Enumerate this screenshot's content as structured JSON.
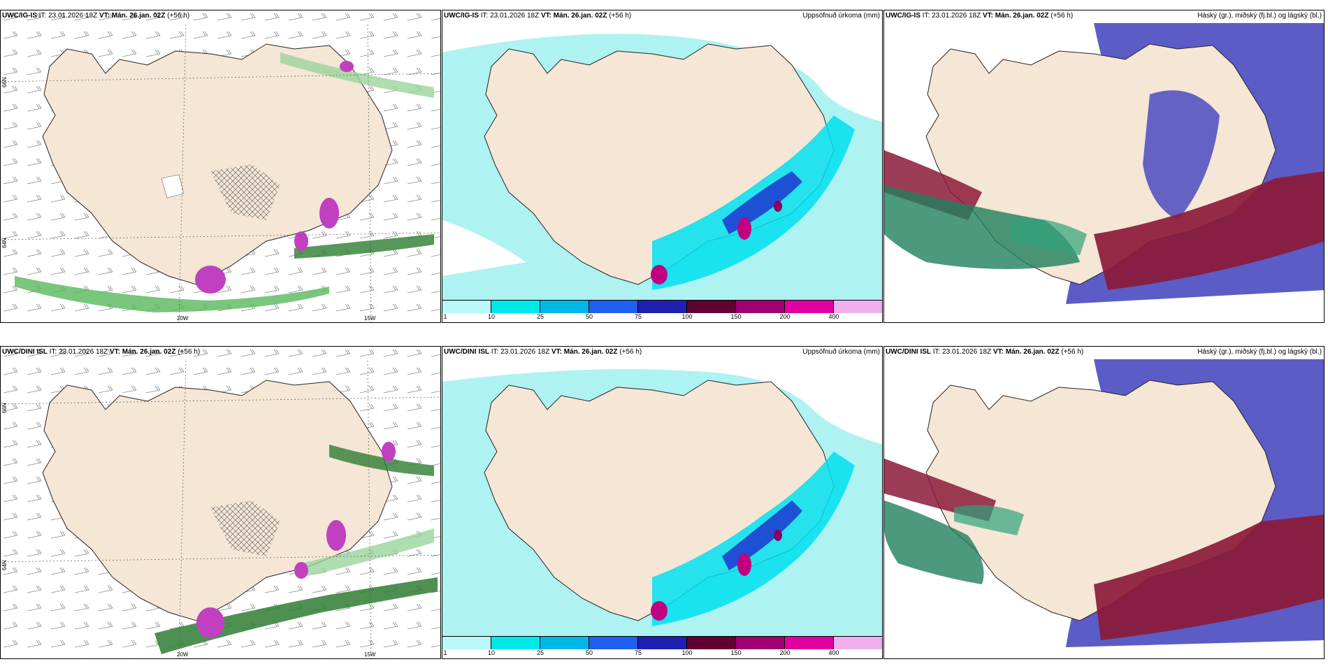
{
  "top_model": "UWC/IG-IS",
  "bottom_model": "UWC/DINI ISL",
  "init_label": "IT:",
  "init_time": "23.01.2026 18Z",
  "valid_label": "VT:",
  "valid_time": "Mán. 26.jan. 02Z",
  "lead_time": "(+56 h)",
  "precip_title": "Uppsöfnuð úrkoma (mm)",
  "cloud_title": "Háský (gr.), miðský (fj.bl.) og lágský (bl.)",
  "lon_labels": [
    "20W",
    "15W"
  ],
  "lat_labels": [
    "66N",
    "64N"
  ],
  "legend": {
    "labels": [
      "1",
      "10",
      "25",
      "50",
      "75",
      "100",
      "150",
      "200",
      "400"
    ],
    "colors": [
      "#b8f8f8",
      "#00e8e8",
      "#00b8e8",
      "#2060f0",
      "#2020b0",
      "#600030",
      "#a00070",
      "#e000a0",
      "#f0b0f0"
    ]
  },
  "colors": {
    "land": "#f5e6d6",
    "sea_precip": "#aef2f2",
    "precip_mid": "#00e0f0",
    "precip_strong": "#1e40d0",
    "precip_peak": "#c00080",
    "snow_green": "#2e7d32",
    "high_cloud": "#1f7f5e",
    "mid_cloud": "#8b1a3a",
    "low_cloud": "#4a4ac0"
  }
}
